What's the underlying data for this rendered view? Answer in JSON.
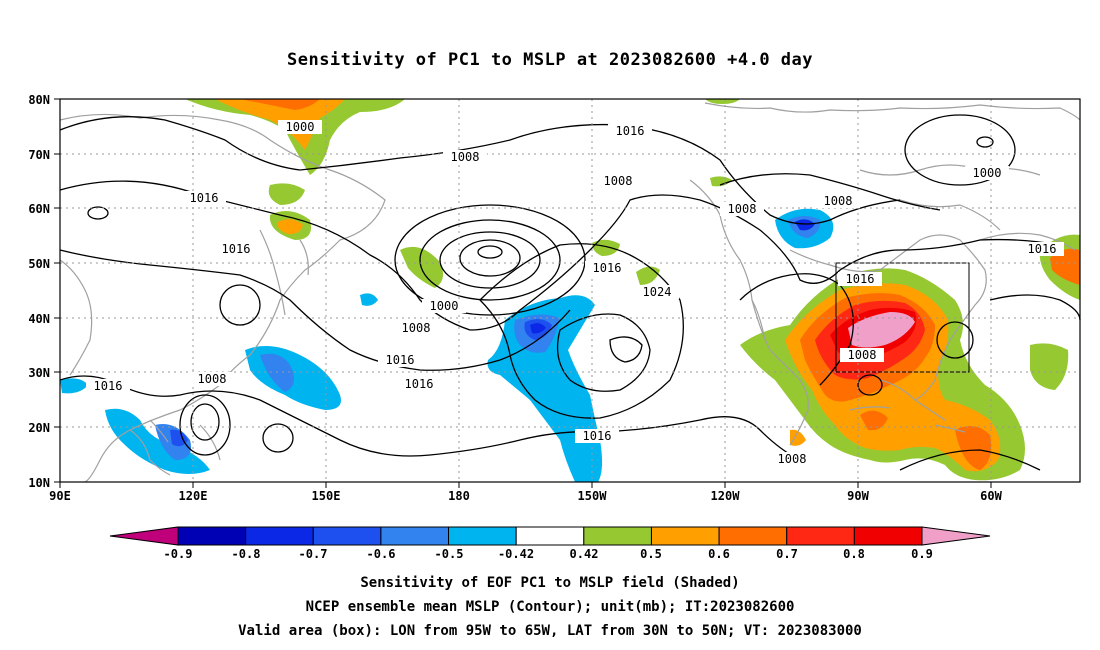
{
  "title": "Sensitivity of PC1 to MSLP at 2023082600 +4.0 day",
  "lat_labels": [
    "80N",
    "70N",
    "60N",
    "50N",
    "40N",
    "30N",
    "20N",
    "10N"
  ],
  "lon_labels": [
    "90E",
    "120E",
    "150E",
    "180",
    "150W",
    "120W",
    "90W",
    "60W"
  ],
  "contour_labels": [
    "1000",
    "1008",
    "1016",
    "1016",
    "1008",
    "1008",
    "1016",
    "1016",
    "1000",
    "1008",
    "1016",
    "1024",
    "1016",
    "1016",
    "1008",
    "1016",
    "1008",
    "1008",
    "1016",
    "1000"
  ],
  "colorbar": {
    "labels": [
      "-0.9",
      "-0.8",
      "-0.7",
      "-0.6",
      "-0.5",
      "-0.42",
      "0.42",
      "0.5",
      "0.6",
      "0.7",
      "0.8",
      "0.9"
    ],
    "colors": [
      "#c0007a",
      "#0000b4",
      "#0a28e6",
      "#1e50f0",
      "#3282f0",
      "#00b4f0",
      "#ffffff",
      "#96c832",
      "#ffa000",
      "#ff6e00",
      "#ff2814",
      "#f00000",
      "#f0a0c8"
    ]
  },
  "captions": {
    "line1": "Sensitivity of EOF PC1 to MSLP field (Shaded)",
    "line2": "NCEP ensemble mean MSLP (Contour); unit(mb); IT:2023082600",
    "line3": "Valid area (box): LON from 95W to 65W, LAT from 30N to 50N; VT: 2023083000"
  }
}
